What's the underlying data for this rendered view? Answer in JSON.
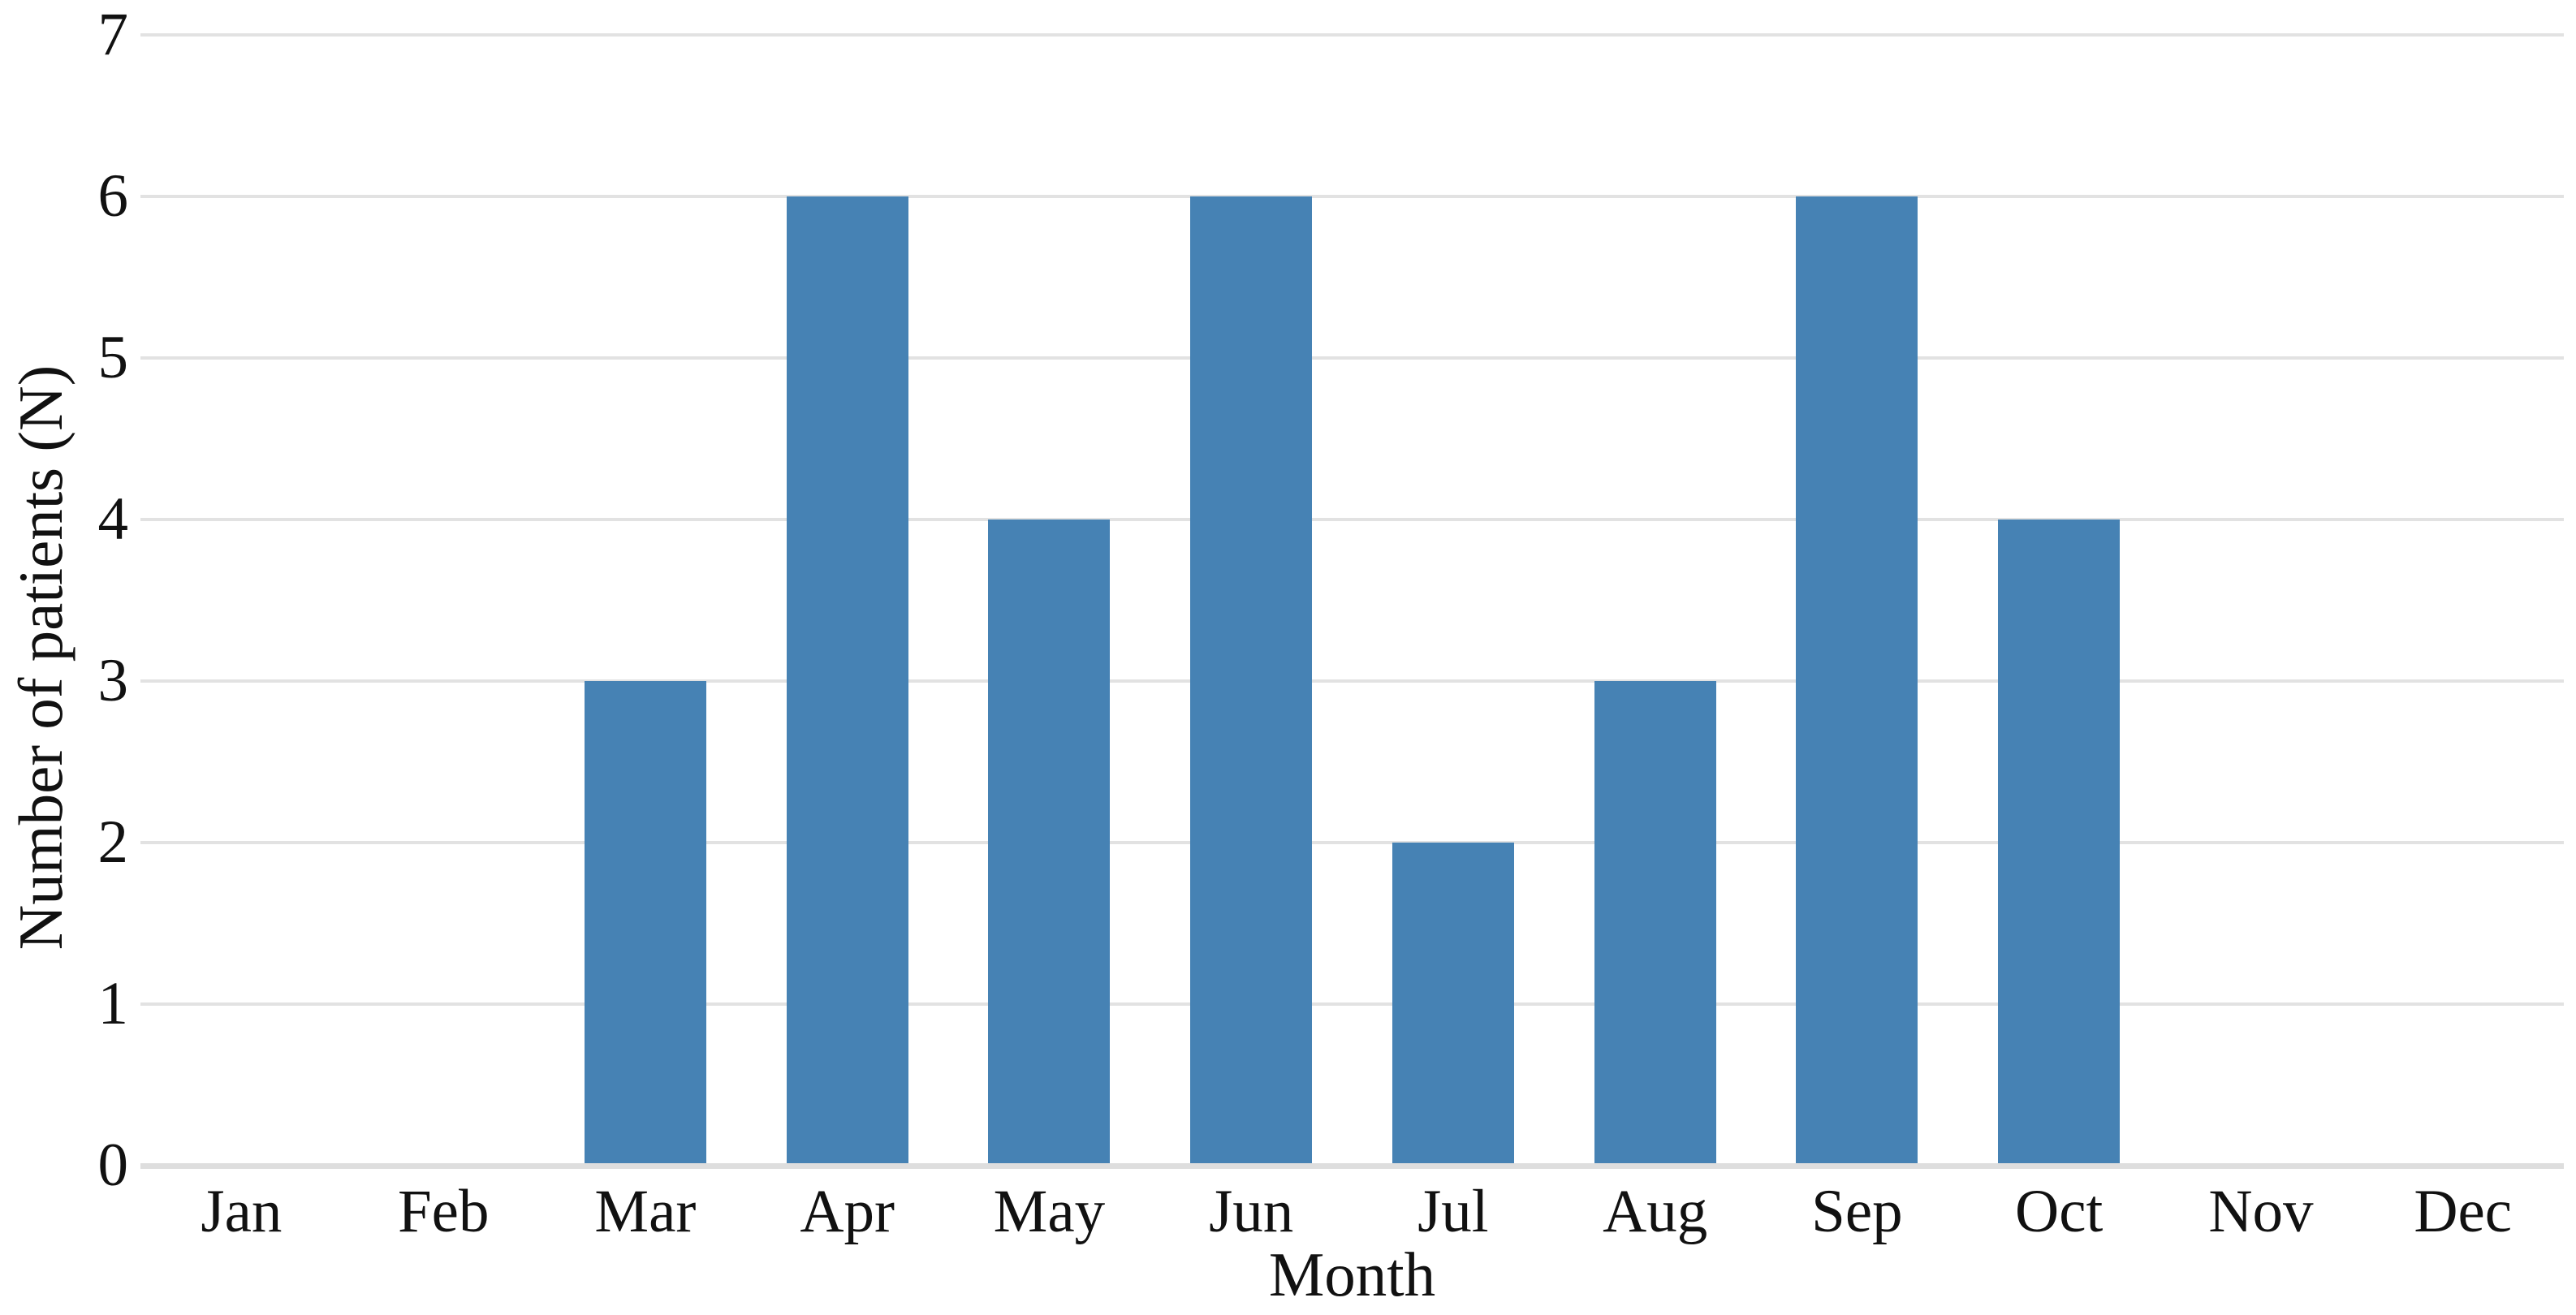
{
  "chart_data": {
    "type": "bar",
    "title": "",
    "xlabel": "Month",
    "ylabel": "Number of patients (N)",
    "categories": [
      "Jan",
      "Feb",
      "Mar",
      "Apr",
      "May",
      "Jun",
      "Jul",
      "Aug",
      "Sep",
      "Oct",
      "Nov",
      "Dec"
    ],
    "values": [
      0,
      0,
      3,
      6,
      4,
      6,
      2,
      3,
      6,
      4,
      0,
      0
    ],
    "series": [
      {
        "name": "Number of patients",
        "values": [
          0,
          0,
          3,
          6,
          4,
          6,
          2,
          3,
          6,
          4,
          0,
          0
        ]
      }
    ],
    "ylim": [
      0,
      7
    ],
    "ytick_labels": [
      "0",
      "1",
      "2",
      "3",
      "4",
      "5",
      "6",
      "7"
    ],
    "grid": "horizontal-only",
    "legend": "none",
    "colors": {
      "bar": "#4682B4",
      "gridline": "#e2e2e2",
      "baseline": "#dedede",
      "text": "#111111",
      "background": "#ffffff"
    }
  }
}
